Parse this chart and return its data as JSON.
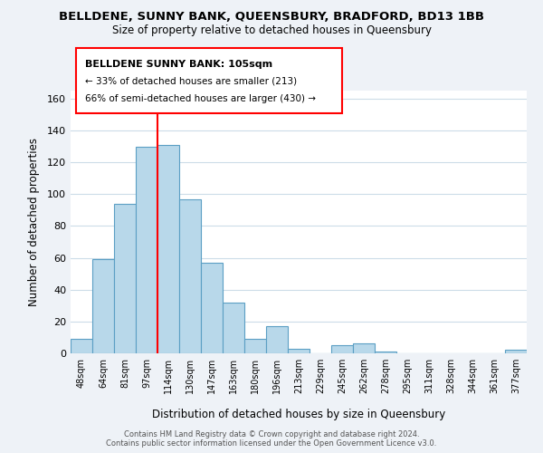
{
  "title": "BELLDENE, SUNNY BANK, QUEENSBURY, BRADFORD, BD13 1BB",
  "subtitle": "Size of property relative to detached houses in Queensbury",
  "xlabel": "Distribution of detached houses by size in Queensbury",
  "ylabel": "Number of detached properties",
  "bar_color": "#b8d8ea",
  "bar_edge_color": "#5b9fc4",
  "background_color": "#eef2f7",
  "plot_bg_color": "#ffffff",
  "grid_color": "#ccdce8",
  "categories": [
    "48sqm",
    "64sqm",
    "81sqm",
    "97sqm",
    "114sqm",
    "130sqm",
    "147sqm",
    "163sqm",
    "180sqm",
    "196sqm",
    "213sqm",
    "229sqm",
    "245sqm",
    "262sqm",
    "278sqm",
    "295sqm",
    "311sqm",
    "328sqm",
    "344sqm",
    "361sqm",
    "377sqm"
  ],
  "values": [
    9,
    59,
    94,
    130,
    131,
    97,
    57,
    32,
    9,
    17,
    3,
    0,
    5,
    6,
    1,
    0,
    0,
    0,
    0,
    0,
    2
  ],
  "ylim": [
    0,
    165
  ],
  "yticks": [
    0,
    20,
    40,
    60,
    80,
    100,
    120,
    140,
    160
  ],
  "red_line_x": 3.5,
  "marker_label": "BELLDENE SUNNY BANK: 105sqm",
  "annotation_line1": "← 33% of detached houses are smaller (213)",
  "annotation_line2": "66% of semi-detached houses are larger (430) →",
  "footer_line1": "Contains HM Land Registry data © Crown copyright and database right 2024.",
  "footer_line2": "Contains public sector information licensed under the Open Government Licence v3.0."
}
